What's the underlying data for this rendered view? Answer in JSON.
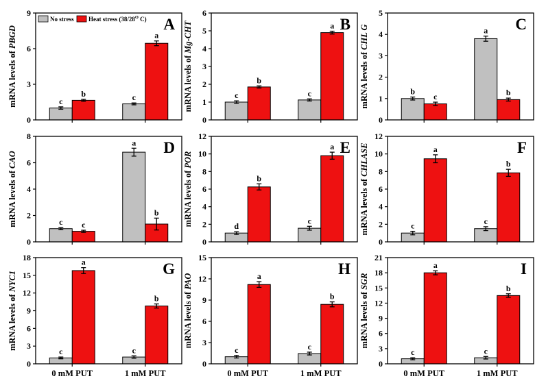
{
  "figure": {
    "legend": {
      "entries": [
        {
          "label": "No stress",
          "color": "#c0c0c0"
        },
        {
          "label": "Heat stress (38/28",
          "sup": "O",
          "suffix": " C)",
          "color": "#ee1111"
        }
      ]
    },
    "x_categories": [
      "0  mM PUT",
      "1 mM PUT"
    ]
  },
  "chart_data": [
    {
      "type": "bar",
      "panel": "A",
      "ylabel_prefix": "mRNA levels of ",
      "ylabel_gene": "PBGD",
      "ylim": [
        0,
        9
      ],
      "yticks": [
        0,
        3,
        6,
        9
      ],
      "yticks_text": [
        "0",
        "3",
        "6",
        "9"
      ],
      "categories": [
        "0  mM PUT",
        "1 mM PUT"
      ],
      "series": [
        {
          "name": "No stress",
          "values": [
            1.0,
            1.35
          ],
          "errors": [
            0.1,
            0.08
          ],
          "letters": [
            "c",
            "c"
          ]
        },
        {
          "name": "Heat stress (38/28 O C)",
          "values": [
            1.65,
            6.45
          ],
          "errors": [
            0.08,
            0.2
          ],
          "letters": [
            "b",
            "a"
          ]
        }
      ]
    },
    {
      "type": "bar",
      "panel": "B",
      "ylabel_prefix": "mRNA levels of ",
      "ylabel_gene": "Mg-CHT",
      "ylim": [
        0,
        6
      ],
      "yticks": [
        0,
        1,
        2,
        3,
        4,
        5,
        6
      ],
      "yticks_text": [
        "0",
        "1",
        "2",
        "3",
        "4",
        "5",
        "6"
      ],
      "categories": [
        "0  mM PUT",
        "1 mM PUT"
      ],
      "series": [
        {
          "name": "No stress",
          "values": [
            1.0,
            1.12
          ],
          "errors": [
            0.07,
            0.06
          ],
          "letters": [
            "c",
            "c"
          ]
        },
        {
          "name": "Heat stress (38/28 O C)",
          "values": [
            1.85,
            4.9
          ],
          "errors": [
            0.06,
            0.08
          ],
          "letters": [
            "b",
            "a"
          ]
        }
      ]
    },
    {
      "type": "bar",
      "panel": "C",
      "ylabel_prefix": "mRNA levels of ",
      "ylabel_gene": "CHL G",
      "ylim": [
        0,
        5
      ],
      "yticks": [
        0,
        1,
        2,
        3,
        4,
        5
      ],
      "yticks_text": [
        "0",
        "1",
        "2",
        "3",
        "4",
        "5"
      ],
      "categories": [
        "0  mM PUT",
        "1 mM PUT"
      ],
      "series": [
        {
          "name": "No stress",
          "values": [
            1.0,
            3.8
          ],
          "errors": [
            0.07,
            0.12
          ],
          "letters": [
            "b",
            "a"
          ]
        },
        {
          "name": "Heat stress (38/28 O C)",
          "values": [
            0.75,
            0.95
          ],
          "errors": [
            0.08,
            0.07
          ],
          "letters": [
            "c",
            "b"
          ]
        }
      ]
    },
    {
      "type": "bar",
      "panel": "D",
      "ylabel_prefix": "mRNA levels of ",
      "ylabel_gene": "CAO",
      "ylim": [
        0,
        8
      ],
      "yticks": [
        0,
        2,
        4,
        6,
        8
      ],
      "yticks_text": [
        "0",
        "2",
        "4",
        "6",
        "8"
      ],
      "categories": [
        "0  mM PUT",
        "1 mM PUT"
      ],
      "series": [
        {
          "name": "No stress",
          "values": [
            1.0,
            6.8
          ],
          "errors": [
            0.08,
            0.3
          ],
          "letters": [
            "c",
            "a"
          ]
        },
        {
          "name": "Heat stress (38/28 O C)",
          "values": [
            0.8,
            1.35
          ],
          "errors": [
            0.08,
            0.45
          ],
          "letters": [
            "c",
            "b"
          ]
        }
      ]
    },
    {
      "type": "bar",
      "panel": "E",
      "ylabel_prefix": "mRNA levels of ",
      "ylabel_gene": "POR",
      "ylim": [
        0,
        12
      ],
      "yticks": [
        0,
        2,
        4,
        6,
        8,
        10,
        12
      ],
      "yticks_text": [
        "0",
        "2",
        "4",
        "6",
        "8",
        "10",
        "12"
      ],
      "categories": [
        "0  mM PUT",
        "1 mM PUT"
      ],
      "series": [
        {
          "name": "No stress",
          "values": [
            1.0,
            1.55
          ],
          "errors": [
            0.15,
            0.22
          ],
          "letters": [
            "d",
            "c"
          ]
        },
        {
          "name": "Heat stress (38/28 O C)",
          "values": [
            6.25,
            9.8
          ],
          "errors": [
            0.35,
            0.4
          ],
          "letters": [
            "b",
            "a"
          ]
        }
      ]
    },
    {
      "type": "bar",
      "panel": "F",
      "ylabel_prefix": "mRNA levels of ",
      "ylabel_gene": "CHLASE",
      "ylim": [
        0,
        12
      ],
      "yticks": [
        0,
        2,
        4,
        6,
        8,
        10,
        12
      ],
      "yticks_text": [
        "0",
        "2",
        "4",
        "6",
        "8",
        "10",
        "12"
      ],
      "categories": [
        "0  mM PUT",
        "1 mM PUT"
      ],
      "series": [
        {
          "name": "No stress",
          "values": [
            1.0,
            1.5
          ],
          "errors": [
            0.2,
            0.22
          ],
          "letters": [
            "c",
            "c"
          ]
        },
        {
          "name": "Heat stress (38/28 O C)",
          "values": [
            9.45,
            7.85
          ],
          "errors": [
            0.45,
            0.4
          ],
          "letters": [
            "a",
            "b"
          ]
        }
      ]
    },
    {
      "type": "bar",
      "panel": "G",
      "ylabel_prefix": "mRNA levels of ",
      "ylabel_gene": "NYC1",
      "ylim": [
        0,
        18
      ],
      "yticks": [
        0,
        3,
        6,
        9,
        12,
        15,
        18
      ],
      "yticks_text": [
        "0",
        "3",
        "6",
        "9",
        "12",
        "15",
        "18"
      ],
      "categories": [
        "0  mM PUT",
        "1 mM PUT"
      ],
      "series": [
        {
          "name": "No stress",
          "values": [
            1.0,
            1.15
          ],
          "errors": [
            0.15,
            0.2
          ],
          "letters": [
            "c",
            "c"
          ]
        },
        {
          "name": "Heat stress (38/28 O C)",
          "values": [
            15.8,
            9.8
          ],
          "errors": [
            0.5,
            0.35
          ],
          "letters": [
            "a",
            "b"
          ]
        }
      ]
    },
    {
      "type": "bar",
      "panel": "H",
      "ylabel_prefix": "mRNA levels of ",
      "ylabel_gene": "PAO",
      "ylim": [
        0,
        15
      ],
      "yticks": [
        0,
        3,
        6,
        9,
        12,
        15
      ],
      "yticks_text": [
        "0",
        "3",
        "6",
        "9",
        "12",
        "15"
      ],
      "categories": [
        "0  mM PUT",
        "1 mM PUT"
      ],
      "series": [
        {
          "name": "No stress",
          "values": [
            1.0,
            1.45
          ],
          "errors": [
            0.18,
            0.2
          ],
          "letters": [
            "c",
            "c"
          ]
        },
        {
          "name": "Heat stress (38/28 O C)",
          "values": [
            11.2,
            8.4
          ],
          "errors": [
            0.4,
            0.35
          ],
          "letters": [
            "a",
            "b"
          ]
        }
      ]
    },
    {
      "type": "bar",
      "panel": "I",
      "ylabel_prefix": "mRNA levels of ",
      "ylabel_gene": "SGR",
      "ylim": [
        0,
        21
      ],
      "yticks": [
        0,
        3,
        6,
        9,
        12,
        15,
        18,
        21
      ],
      "yticks_text": [
        "0",
        "3",
        "6",
        "9",
        "12",
        "15",
        "18",
        "21"
      ],
      "categories": [
        "0  mM PUT",
        "1 mM PUT"
      ],
      "series": [
        {
          "name": "No stress",
          "values": [
            1.0,
            1.2
          ],
          "errors": [
            0.2,
            0.25
          ],
          "letters": [
            "c",
            "c"
          ]
        },
        {
          "name": "Heat stress (38/28 O C)",
          "values": [
            18.0,
            13.5
          ],
          "errors": [
            0.4,
            0.35
          ],
          "letters": [
            "a",
            "b"
          ]
        }
      ]
    }
  ]
}
